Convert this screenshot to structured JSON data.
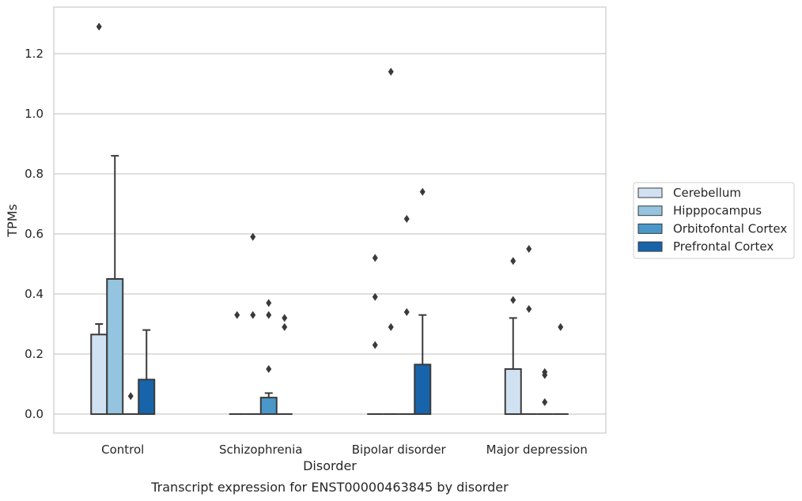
{
  "chart_data": {
    "type": "box",
    "title": "",
    "caption": "Transcript expression for ENST00000463845 by disorder",
    "xlabel": "Disorder",
    "ylabel": "TPMs",
    "ylim": [
      -0.063,
      1.355
    ],
    "yticks": [
      0.0,
      0.2,
      0.4,
      0.6,
      0.8,
      1.0,
      1.2
    ],
    "ytick_labels": [
      "0.0",
      "0.2",
      "0.4",
      "0.6",
      "0.8",
      "1.0",
      "1.2"
    ],
    "grid": "horizontal",
    "legend_position": "right",
    "categories": [
      "Control",
      "Schizophrenia",
      "Bipolar disorder",
      "Major depression"
    ],
    "series": [
      {
        "name": "Cerebellum",
        "color": "#d0e1f2",
        "boxes": [
          {
            "q1": 0.0,
            "q3": 0.265,
            "whisker_low": 0.0,
            "whisker_high": 0.3,
            "outliers": [
              1.29
            ]
          },
          {
            "q1": 0.0,
            "q3": 0.0,
            "whisker_low": 0.0,
            "whisker_high": 0.0,
            "outliers": [
              0.33
            ]
          },
          {
            "q1": 0.0,
            "q3": 0.0,
            "whisker_low": 0.0,
            "whisker_high": 0.0,
            "outliers": [
              0.52,
              0.39,
              0.23
            ]
          },
          {
            "q1": 0.0,
            "q3": 0.15,
            "whisker_low": 0.0,
            "whisker_high": 0.32,
            "outliers": [
              0.51,
              0.38
            ]
          }
        ]
      },
      {
        "name": "Hipppocampus",
        "color": "#94c4df",
        "boxes": [
          {
            "q1": 0.0,
            "q3": 0.45,
            "whisker_low": 0.0,
            "whisker_high": 0.86,
            "outliers": []
          },
          {
            "q1": 0.0,
            "q3": 0.0,
            "whisker_low": 0.0,
            "whisker_high": 0.0,
            "outliers": [
              0.59,
              0.33
            ]
          },
          {
            "q1": 0.0,
            "q3": 0.0,
            "whisker_low": 0.0,
            "whisker_high": 0.0,
            "outliers": [
              1.14,
              0.29
            ]
          },
          {
            "q1": 0.0,
            "q3": 0.0,
            "whisker_low": 0.0,
            "whisker_high": 0.0,
            "outliers": [
              0.55,
              0.35
            ]
          }
        ]
      },
      {
        "name": "Orbitofontal Cortex",
        "color": "#4a98c9",
        "boxes": [
          {
            "q1": 0.0,
            "q3": 0.0,
            "whisker_low": 0.0,
            "whisker_high": 0.0,
            "outliers": [
              0.06
            ]
          },
          {
            "q1": 0.0,
            "q3": 0.055,
            "whisker_low": 0.0,
            "whisker_high": 0.07,
            "outliers": [
              0.37,
              0.33,
              0.15
            ]
          },
          {
            "q1": 0.0,
            "q3": 0.0,
            "whisker_low": 0.0,
            "whisker_high": 0.0,
            "outliers": [
              0.65,
              0.34
            ]
          },
          {
            "q1": 0.0,
            "q3": 0.0,
            "whisker_low": 0.0,
            "whisker_high": 0.0,
            "outliers": [
              0.14,
              0.13,
              0.04
            ]
          }
        ]
      },
      {
        "name": "Prefrontal Cortex",
        "color": "#1764ab",
        "boxes": [
          {
            "q1": 0.0,
            "q3": 0.115,
            "whisker_low": 0.0,
            "whisker_high": 0.28,
            "outliers": []
          },
          {
            "q1": 0.0,
            "q3": 0.0,
            "whisker_low": 0.0,
            "whisker_high": 0.0,
            "outliers": [
              0.32,
              0.29
            ]
          },
          {
            "q1": 0.0,
            "q3": 0.165,
            "whisker_low": 0.0,
            "whisker_high": 0.33,
            "outliers": [
              0.74
            ]
          },
          {
            "q1": 0.0,
            "q3": 0.0,
            "whisker_low": 0.0,
            "whisker_high": 0.0,
            "outliers": [
              0.29
            ]
          }
        ]
      }
    ]
  }
}
